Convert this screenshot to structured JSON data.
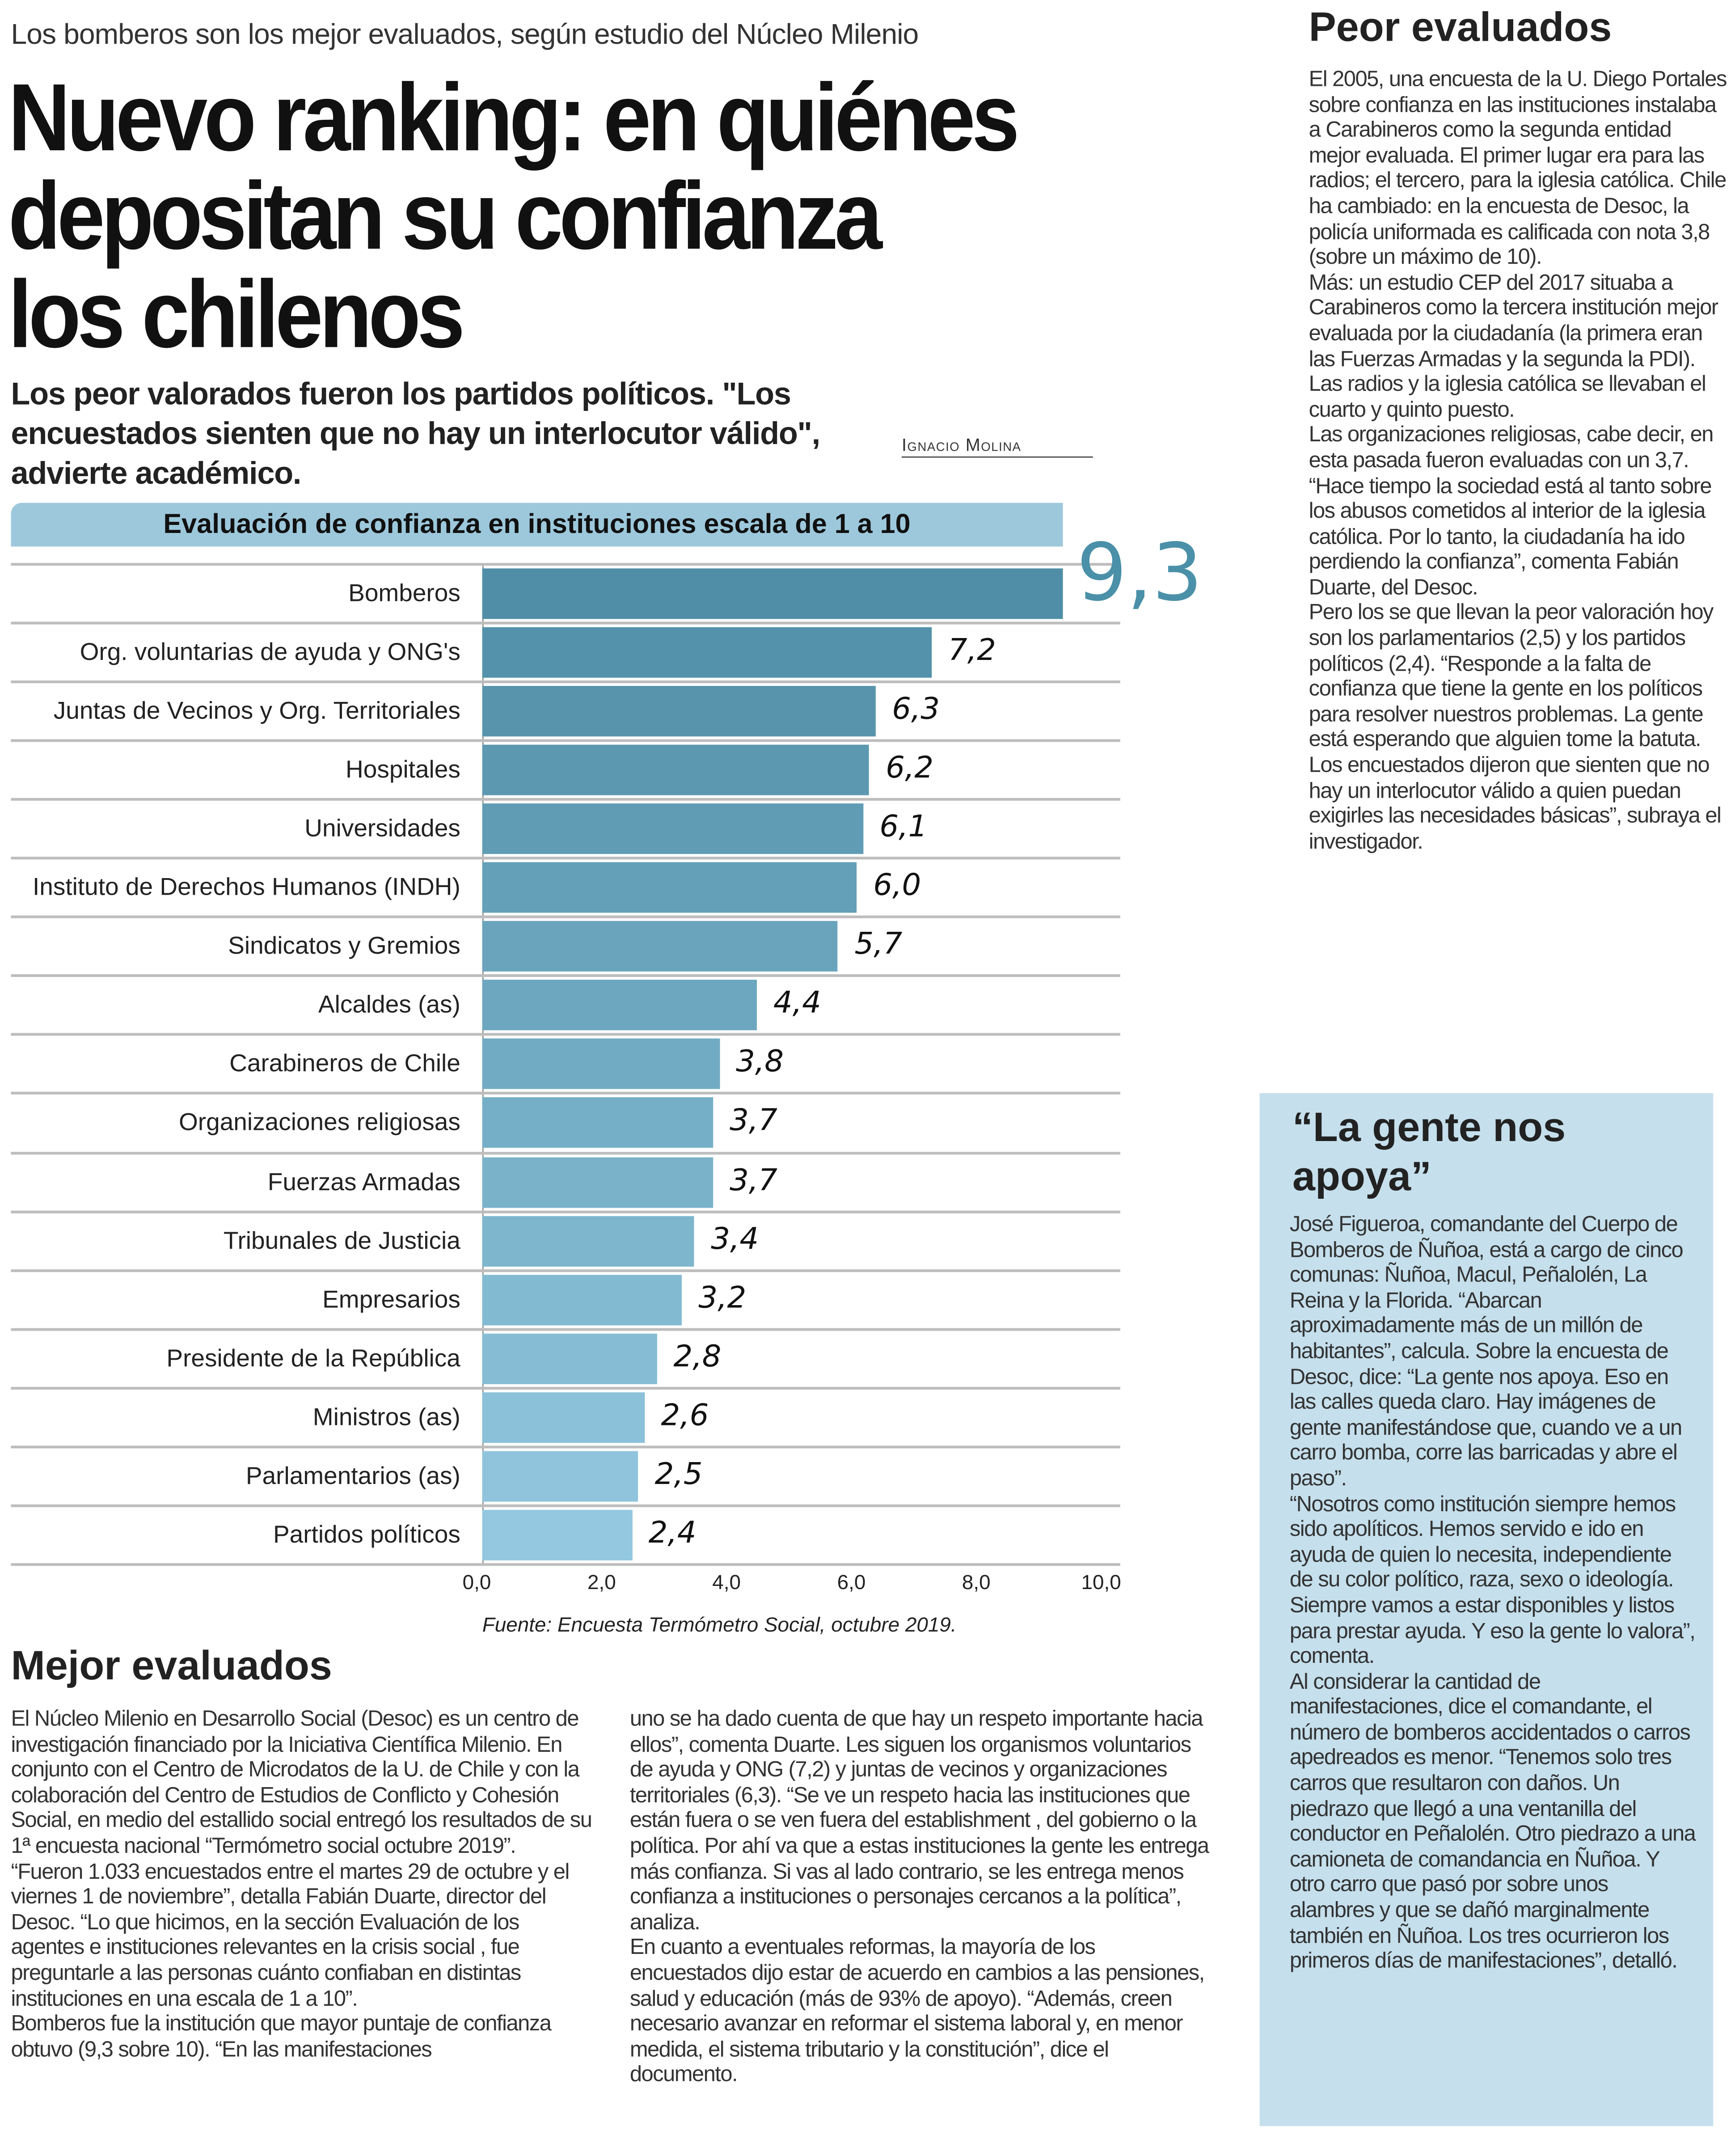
{
  "kicker": "Los bomberos son los mejor evaluados, según estudio del Núcleo Milenio",
  "headline": [
    "Nuevo ranking: en quiénes",
    "depositan su confianza",
    "los chilenos"
  ],
  "deck": "Los peor valorados fueron los partidos políticos. \"Los encuestados sienten que no hay un interlocutor válido\", advierte académico.",
  "byline": "Ignacio Molina",
  "chart_data": {
    "type": "bar",
    "orientation": "horizontal",
    "title": "Evaluación de confianza en instituciones escala de 1 a 10",
    "categories": [
      "Bomberos",
      "Org. voluntarias de ayuda y ONG's",
      "Juntas de Vecinos y Org. Territoriales",
      "Hospitales",
      "Universidades",
      "Instituto de Derechos Humanos (INDH)",
      "Sindicatos y Gremios",
      "Alcaldes (as)",
      "Carabineros de Chile",
      "Organizaciones religiosas",
      "Fuerzas Armadas",
      "Tribunales de Justicia",
      "Empresarios",
      "Presidente de la República",
      "Ministros (as)",
      "Parlamentarios (as)",
      "Partidos políticos"
    ],
    "values": [
      9.3,
      7.2,
      6.3,
      6.2,
      6.1,
      6.0,
      5.7,
      4.4,
      3.8,
      3.7,
      3.7,
      3.4,
      3.2,
      2.8,
      2.6,
      2.5,
      2.4
    ],
    "value_labels": [
      "9,3",
      "7,2",
      "6,3",
      "6,2",
      "6,1",
      "6,0",
      "5,7",
      "4,4",
      "3,8",
      "3,7",
      "3,7",
      "3,4",
      "3,2",
      "2,8",
      "2,6",
      "2,5",
      "2,4"
    ],
    "xlim": [
      0,
      10
    ],
    "xticks": [
      "0,0",
      "2,0",
      "4,0",
      "6,0",
      "8,0",
      "10,0"
    ],
    "source": "Fuente: Encuesta Termómetro Social, octubre 2019.",
    "colors": {
      "highest": "#4f8ea6",
      "lowest": "#93c8e0",
      "title_band": "#9dc8dc",
      "highlight_value": "#4a90a8"
    }
  },
  "mejor": {
    "heading": "Mejor evaluados",
    "col1": [
      "El Núcleo Milenio en Desarrollo Social (Desoc) es un centro de investigación financiado por la Iniciativa Científica Milenio. En conjunto con el Centro de Microdatos de la U. de Chile y con la colaboración del Centro de Estudios de Conflicto y Cohesión Social, en medio del estallido social entregó los resultados de su 1ª encuesta nacional “Termómetro social octubre 2019”.",
      "“Fueron 1.033 encuestados entre el martes 29 de octubre y el viernes 1 de noviembre”, detalla Fabián Duarte, director del Desoc. “Lo que hicimos, en la sección Evaluación de los agentes e instituciones relevantes en la crisis social , fue preguntarle a las personas cuánto confiaban en distintas instituciones en una escala de 1 a 10”.",
      "Bomberos fue la institución que mayor puntaje de confianza obtuvo (9,3 sobre 10). “En las manifestaciones"
    ],
    "col2": [
      "uno se ha dado cuenta de que hay un respeto importante hacia ellos”, comenta Duarte. Les siguen los organismos voluntarios de ayuda y ONG (7,2) y juntas de vecinos y organizaciones territoriales (6,3). “Se ve un respeto hacia las instituciones que están fuera o se ven fuera del establishment , del gobierno o la política. Por ahí va que a estas instituciones la gente les entrega más confianza. Si vas al lado contrario, se les entrega menos confianza a instituciones o personajes cercanos a la política”, analiza.",
      "En cuanto a eventuales reformas, la mayoría de los encuestados dijo estar de acuerdo en cambios a las pensiones, salud y educación (más de 93% de apoyo). “Además, creen necesario avanzar en reformar el sistema laboral y, en menor medida, el sistema tributario y la constitución”, dice el documento."
    ]
  },
  "peor": {
    "heading": "Peor evaluados",
    "paragraphs": [
      "El 2005, una encuesta de la U. Diego Portales sobre confianza en las instituciones instalaba a Carabineros como la segunda entidad mejor evaluada. El primer lugar era para las radios; el tercero, para la iglesia católica. Chile ha cambiado: en la encuesta de Desoc, la policía uniformada es calificada con nota 3,8 (sobre un máximo de 10).",
      "Más: un estudio CEP del 2017 situaba a Carabineros como la tercera institución mejor evaluada por la ciudadanía (la primera eran las Fuerzas Armadas y la segunda la PDI). Las radios y la iglesia católica se llevaban el cuarto y quinto puesto.",
      "Las organizaciones religiosas, cabe decir, en esta pasada fueron evaluadas con un 3,7. “Hace tiempo la sociedad está al tanto sobre los abusos cometidos al interior de la iglesia católica. Por lo tanto, la ciudadanía ha ido perdiendo la confianza”, comenta Fabián Duarte, del Desoc.",
      "Pero los se que llevan la peor valoración hoy son los parlamentarios (2,5) y los partidos políticos (2,4). “Responde a la falta de confianza que tiene la gente en los políticos para resolver nuestros problemas. La gente está esperando que alguien tome la batuta. Los encuestados dijeron que sienten que no hay un interlocutor válido a quien puedan exigirles las necesidades básicas”, subraya el investigador."
    ]
  },
  "box": {
    "heading": "“La gente nos apoya”",
    "paragraphs": [
      "José Figueroa, comandante del Cuerpo de Bomberos de Ñuñoa, está a cargo de cinco comunas: Ñuñoa, Macul, Peñalolén, La Reina y la Florida. “Abarcan aproximadamente más de un millón de habitantes”, calcula. Sobre la encuesta de Desoc, dice: “La gente nos apoya. Eso en las calles queda claro. Hay imágenes de gente manifestándose que, cuando ve a un carro bomba, corre las barricadas y abre el paso”.",
      "“Nosotros como institución siempre hemos sido apolíticos. Hemos servido e ido en ayuda de quien lo necesita, independiente de su color político, raza, sexo o ideología. Siempre vamos a estar disponibles y listos para prestar ayuda. Y eso la gente lo valora”, comenta.",
      "Al considerar la cantidad de manifestaciones, dice el comandante, el número de bomberos accidentados o carros apedreados es menor. “Tenemos solo tres carros que resultaron con daños. Un piedrazo que llegó a una ventanilla del conductor en Peñalolén. Otro piedrazo a una camioneta de comandancia en Ñuñoa. Y otro carro que pasó por sobre unos alambres y que se dañó marginalmente también en Ñuñoa. Los tres ocurrieron los primeros días de manifestaciones”, detalló."
    ]
  }
}
